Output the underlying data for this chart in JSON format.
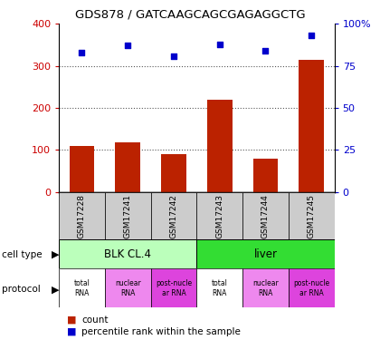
{
  "title": "GDS878 / GATCAAGCAGCGAGAGGCTG",
  "samples": [
    "GSM17228",
    "GSM17241",
    "GSM17242",
    "GSM17243",
    "GSM17244",
    "GSM17245"
  ],
  "counts": [
    110,
    118,
    90,
    220,
    80,
    315
  ],
  "percentiles": [
    83,
    87,
    81,
    88,
    84,
    93
  ],
  "ylim_left": [
    0,
    400
  ],
  "ylim_right": [
    0,
    100
  ],
  "yticks_left": [
    0,
    100,
    200,
    300,
    400
  ],
  "yticks_right": [
    0,
    25,
    50,
    75,
    100
  ],
  "ytick_labels_right": [
    "0",
    "25",
    "50",
    "75",
    "100%"
  ],
  "bar_color": "#bb2200",
  "dot_color": "#0000cc",
  "cell_type_groups": [
    {
      "label": "BLK CL.4",
      "start": 0,
      "end": 3,
      "color": "#bbffbb"
    },
    {
      "label": "liver",
      "start": 3,
      "end": 6,
      "color": "#33dd33"
    }
  ],
  "protocols": [
    "total\nRNA",
    "nuclear\nRNA",
    "post-nucle\nar RNA",
    "total\nRNA",
    "nuclear\nRNA",
    "post-nucle\nar RNA"
  ],
  "protocol_colors": [
    "#ffffff",
    "#ee88ee",
    "#dd44dd",
    "#ffffff",
    "#ee88ee",
    "#dd44dd"
  ],
  "sample_box_color": "#cccccc",
  "grid_color": "#555555",
  "left_label_color": "#cc0000",
  "right_label_color": "#0000cc",
  "legend_count_color": "#bb2200",
  "legend_pct_color": "#0000cc",
  "bg_color": "#ffffff"
}
